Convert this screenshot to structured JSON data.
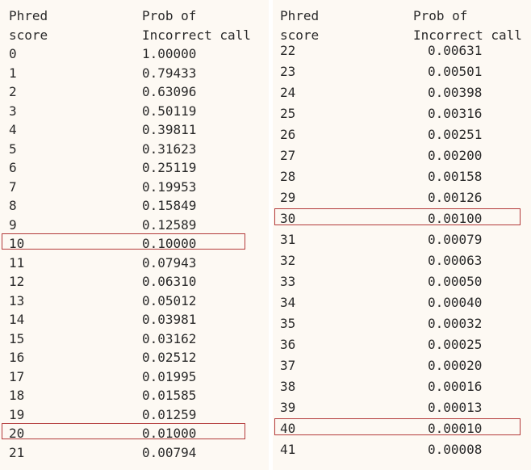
{
  "left_table": {
    "header": {
      "col1_line1": "Phred",
      "col1_line2": "score",
      "col2_line1": "Prob of",
      "col2_line2": "Incorrect call"
    },
    "rows": [
      {
        "score": "0",
        "prob": "1.00000"
      },
      {
        "score": "1",
        "prob": "0.79433"
      },
      {
        "score": "2",
        "prob": "0.63096"
      },
      {
        "score": "3",
        "prob": "0.50119"
      },
      {
        "score": "4",
        "prob": "0.39811"
      },
      {
        "score": "5",
        "prob": "0.31623"
      },
      {
        "score": "6",
        "prob": "0.25119"
      },
      {
        "score": "7",
        "prob": "0.19953"
      },
      {
        "score": "8",
        "prob": "0.15849"
      },
      {
        "score": "9",
        "prob": "0.12589"
      },
      {
        "score": "10",
        "prob": "0.10000"
      },
      {
        "score": "11",
        "prob": "0.07943"
      },
      {
        "score": "12",
        "prob": "0.06310"
      },
      {
        "score": "13",
        "prob": "0.05012"
      },
      {
        "score": "14",
        "prob": "0.03981"
      },
      {
        "score": "15",
        "prob": "0.03162"
      },
      {
        "score": "16",
        "prob": "0.02512"
      },
      {
        "score": "17",
        "prob": "0.01995"
      },
      {
        "score": "18",
        "prob": "0.01585"
      },
      {
        "score": "19",
        "prob": "0.01259"
      },
      {
        "score": "20",
        "prob": "0.01000"
      },
      {
        "score": "21",
        "prob": "0.00794"
      }
    ],
    "highlighted_scores": [
      "10",
      "20"
    ]
  },
  "right_table": {
    "header": {
      "col1_line1": "Phred",
      "col1_line2": "score",
      "col2_line1": "Prob of",
      "col2_line2": "Incorrect call"
    },
    "rows": [
      {
        "score": "22",
        "prob": "0.00631"
      },
      {
        "score": "23",
        "prob": "0.00501"
      },
      {
        "score": "24",
        "prob": "0.00398"
      },
      {
        "score": "25",
        "prob": "0.00316"
      },
      {
        "score": "26",
        "prob": "0.00251"
      },
      {
        "score": "27",
        "prob": "0.00200"
      },
      {
        "score": "28",
        "prob": "0.00158"
      },
      {
        "score": "29",
        "prob": "0.00126"
      },
      {
        "score": "30",
        "prob": "0.00100"
      },
      {
        "score": "31",
        "prob": "0.00079"
      },
      {
        "score": "32",
        "prob": "0.00063"
      },
      {
        "score": "33",
        "prob": "0.00050"
      },
      {
        "score": "34",
        "prob": "0.00040"
      },
      {
        "score": "35",
        "prob": "0.00032"
      },
      {
        "score": "36",
        "prob": "0.00025"
      },
      {
        "score": "37",
        "prob": "0.00020"
      },
      {
        "score": "38",
        "prob": "0.00016"
      },
      {
        "score": "39",
        "prob": "0.00013"
      },
      {
        "score": "40",
        "prob": "0.00010"
      },
      {
        "score": "41",
        "prob": "0.00008"
      }
    ],
    "highlighted_scores": [
      "30",
      "40"
    ]
  },
  "colors": {
    "highlight_border": "#b33a3a",
    "text": "#2a2a2a",
    "panel_background": "#fdf9f3"
  }
}
